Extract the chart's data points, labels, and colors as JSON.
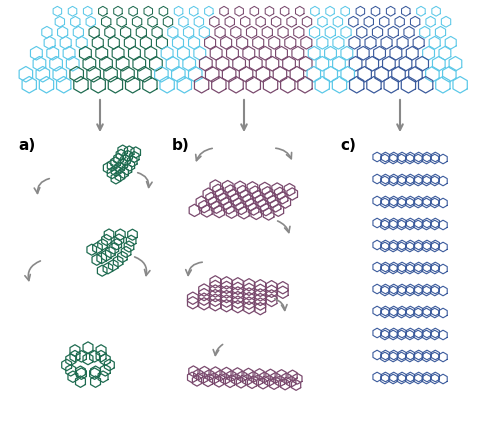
{
  "graphene_color": "#5bc8e8",
  "graphene_green_color": "#1e6b50",
  "graphene_purple_color": "#7a4a6e",
  "graphene_blue_color": "#3a5a9c",
  "arrow_color": "#888888",
  "label_a": "a)",
  "label_b": "b)",
  "label_c": "c)",
  "bg_color": "#ffffff"
}
